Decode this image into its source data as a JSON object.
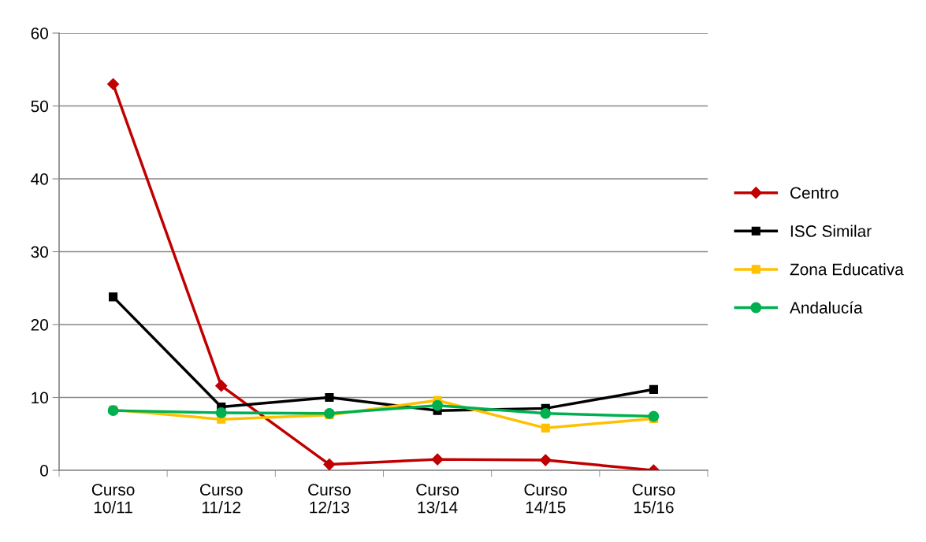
{
  "chart_data": {
    "type": "line",
    "categories": [
      "Curso\n10/11",
      "Curso\n11/12",
      "Curso\n12/13",
      "Curso\n13/14",
      "Curso\n14/15",
      "Curso\n15/16"
    ],
    "series": [
      {
        "name": "Centro",
        "color": "#c00000",
        "marker": "diamond",
        "values": [
          53,
          11.6,
          0.8,
          1.5,
          1.4,
          0
        ]
      },
      {
        "name": "ISC Similar",
        "color": "#000000",
        "marker": "square",
        "values": [
          23.8,
          8.7,
          10.0,
          8.2,
          8.5,
          11.1
        ]
      },
      {
        "name": "Zona Educativa",
        "color": "#ffc000",
        "marker": "square",
        "values": [
          8.3,
          7.0,
          7.6,
          9.6,
          5.8,
          7.1
        ]
      },
      {
        "name": "Andalucía",
        "color": "#00b050",
        "marker": "circle",
        "values": [
          8.2,
          7.9,
          7.8,
          8.9,
          7.8,
          7.4
        ]
      }
    ],
    "ylim": [
      0,
      60
    ],
    "yticks": [
      0,
      10,
      20,
      30,
      40,
      50,
      60
    ],
    "grid": "y",
    "legend": "right",
    "line_style": "solid"
  }
}
